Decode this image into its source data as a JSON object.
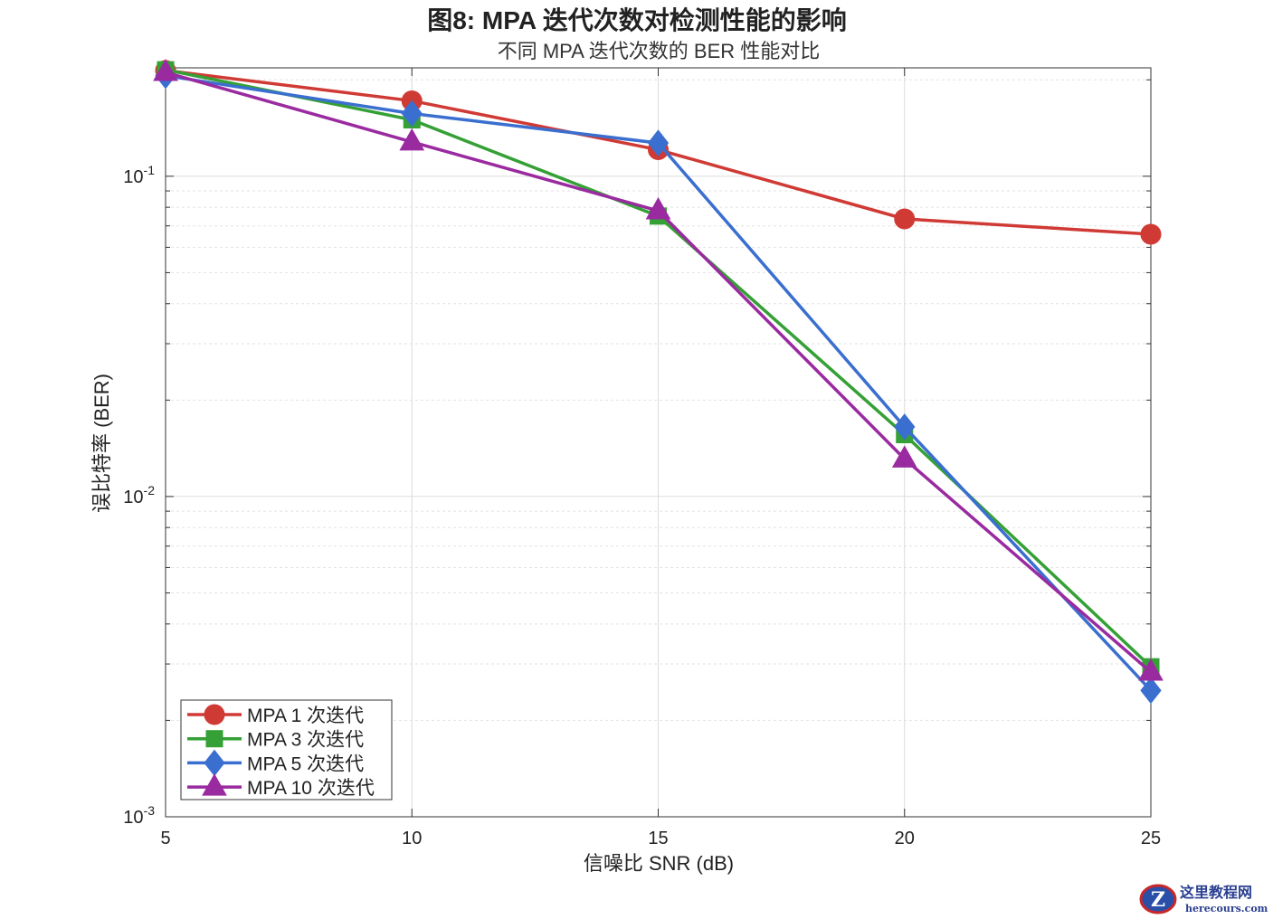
{
  "chart_data": {
    "type": "line",
    "title": "图8: MPA 迭代次数对检测性能的影响",
    "subtitle": "不同 MPA 迭代次数的 BER 性能对比",
    "xlabel": "信噪比 SNR (dB)",
    "ylabel": "误比特率 (BER)",
    "x": [
      5,
      10,
      15,
      20,
      25
    ],
    "xlim": [
      5,
      25
    ],
    "ylim": [
      0.001,
      0.218
    ],
    "yscale": "log",
    "xticks": [
      "5",
      "10",
      "15",
      "20",
      "25"
    ],
    "yticks": [
      {
        "base": "10",
        "exp": "-1",
        "value": 0.1
      },
      {
        "base": "10",
        "exp": "-2",
        "value": 0.01
      },
      {
        "base": "10",
        "exp": "-3",
        "value": 0.001
      }
    ],
    "grid": true,
    "minor_grid": true,
    "legend_placement": "bottom-left",
    "series": [
      {
        "name": "MPA 1 次迭代",
        "color": "#d03a35",
        "marker": "circle",
        "values": [
          0.214,
          0.172,
          0.121,
          0.0736,
          0.0659
        ]
      },
      {
        "name": "MPA 3 次迭代",
        "color": "#35a035",
        "marker": "square",
        "values": [
          0.215,
          0.15,
          0.0751,
          0.0156,
          0.00294
        ]
      },
      {
        "name": "MPA 5 次迭代",
        "color": "#3a6fd0",
        "marker": "diamond",
        "values": [
          0.206,
          0.157,
          0.127,
          0.0165,
          0.00248
        ]
      },
      {
        "name": "MPA 10 次迭代",
        "color": "#9a2aa0",
        "marker": "triangle",
        "values": [
          0.211,
          0.128,
          0.078,
          0.0131,
          0.00283
        ]
      }
    ]
  },
  "watermark": {
    "text_cn": "这里教程网",
    "text_en": "herecours.com"
  }
}
